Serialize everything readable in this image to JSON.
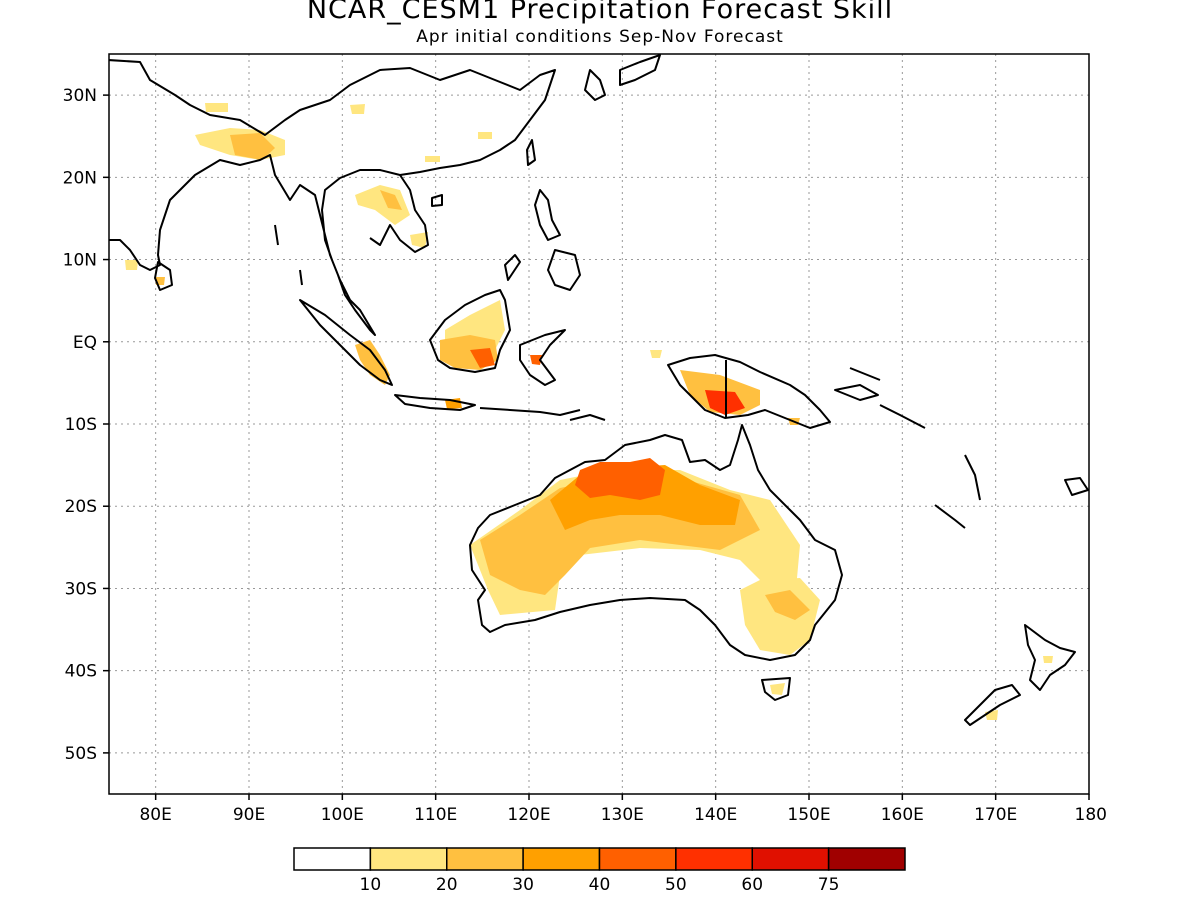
{
  "title": "NCAR_CESM1 Precipitation Forecast Skill",
  "subtitle": "Apr initial conditions  Sep-Nov Forecast",
  "map": {
    "lon_range": [
      75,
      180
    ],
    "lat_range": [
      -55,
      35
    ],
    "lat_ticks": [
      {
        "value": 30,
        "label": "30N"
      },
      {
        "value": 20,
        "label": "20N"
      },
      {
        "value": 10,
        "label": "10N"
      },
      {
        "value": 0,
        "label": "EQ"
      },
      {
        "value": -10,
        "label": "10S"
      },
      {
        "value": -20,
        "label": "20S"
      },
      {
        "value": -30,
        "label": "30S"
      },
      {
        "value": -40,
        "label": "40S"
      },
      {
        "value": -50,
        "label": "50S"
      }
    ],
    "lon_ticks": [
      {
        "value": 80,
        "label": "80E"
      },
      {
        "value": 90,
        "label": "90E"
      },
      {
        "value": 100,
        "label": "100E"
      },
      {
        "value": 110,
        "label": "110E"
      },
      {
        "value": 120,
        "label": "120E"
      },
      {
        "value": 130,
        "label": "130E"
      },
      {
        "value": 140,
        "label": "140E"
      },
      {
        "value": 150,
        "label": "150E"
      },
      {
        "value": 160,
        "label": "160E"
      },
      {
        "value": 170,
        "label": "170E"
      },
      {
        "value": 180,
        "label": "180"
      }
    ],
    "gridlines": "dotted"
  },
  "colorbar": {
    "colors": [
      "#ffffff",
      "#ffe680",
      "#ffc040",
      "#ffa000",
      "#ff6000",
      "#ff3000",
      "#e01000",
      "#a00000"
    ],
    "labels": [
      "10",
      "20",
      "30",
      "40",
      "50",
      "60",
      "75"
    ]
  },
  "skill_regions": [
    {
      "region": "Northern Australia",
      "level": "40-60"
    },
    {
      "region": "Western Australia",
      "level": "20-40"
    },
    {
      "region": "Southeast Australia",
      "level": "10-30"
    },
    {
      "region": "Borneo",
      "level": "20-60"
    },
    {
      "region": "New Guinea",
      "level": "30-60"
    },
    {
      "region": "Himalaya",
      "level": "10-30"
    },
    {
      "region": "Indochina",
      "level": "10-20"
    },
    {
      "region": "Sumatra",
      "level": "30-50"
    }
  ]
}
